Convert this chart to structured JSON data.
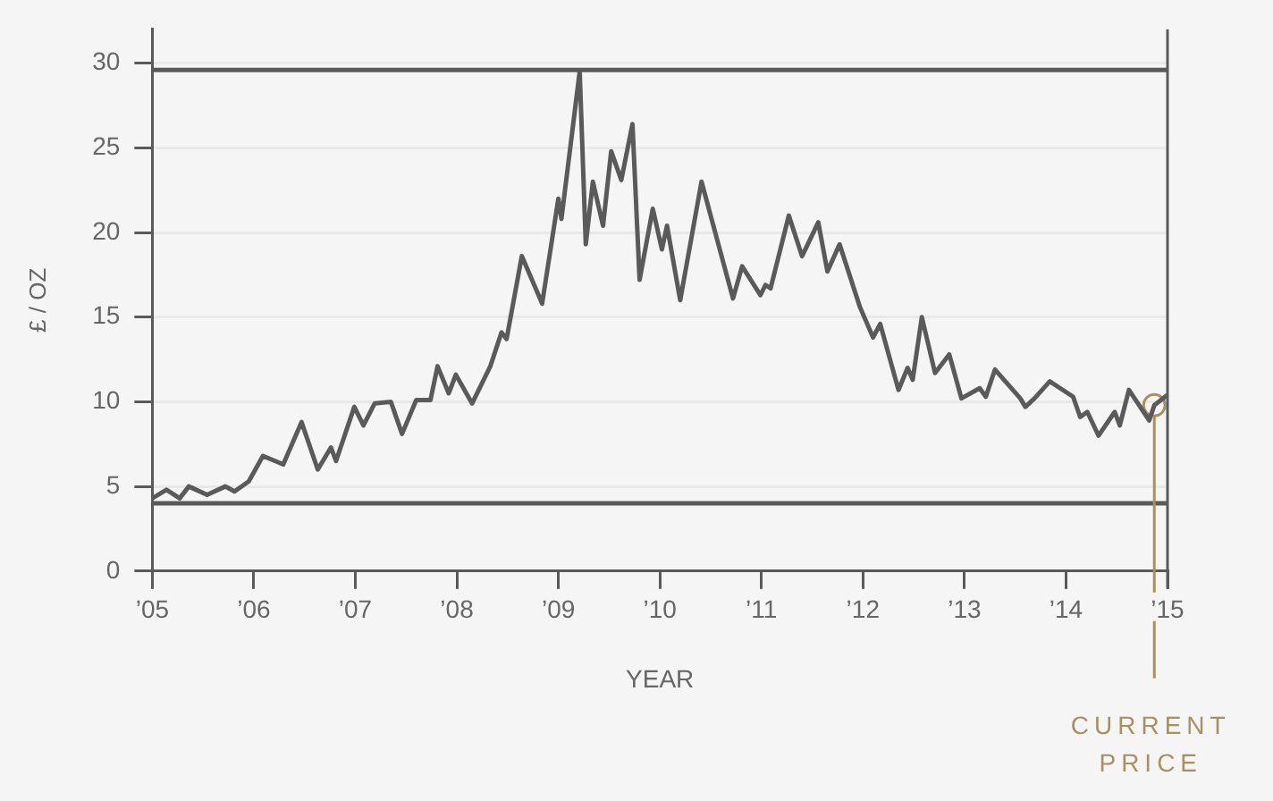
{
  "chart_data": {
    "type": "line",
    "xlabel": "YEAR",
    "ylabel": "£ / OZ",
    "x": [
      2005.0,
      2005.14,
      2005.27,
      2005.36,
      2005.54,
      2005.72,
      2005.81,
      2005.95,
      2006.09,
      2006.29,
      2006.47,
      2006.63,
      2006.76,
      2006.81,
      2006.99,
      2007.08,
      2007.19,
      2007.35,
      2007.46,
      2007.6,
      2007.74,
      2007.81,
      2007.92,
      2007.99,
      2008.15,
      2008.33,
      2008.44,
      2008.49,
      2008.64,
      2008.84,
      2009.0,
      2009.03,
      2009.21,
      2009.27,
      2009.34,
      2009.44,
      2009.52,
      2009.62,
      2009.73,
      2009.8,
      2009.93,
      2010.02,
      2010.07,
      2010.2,
      2010.41,
      2010.72,
      2010.81,
      2010.99,
      2011.04,
      2011.09,
      2011.27,
      2011.4,
      2011.56,
      2011.65,
      2011.77,
      2011.97,
      2012.1,
      2012.17,
      2012.35,
      2012.44,
      2012.49,
      2012.58,
      2012.71,
      2012.85,
      2012.97,
      2013.15,
      2013.21,
      2013.3,
      2013.55,
      2013.6,
      2013.69,
      2013.84,
      2014.07,
      2014.14,
      2014.21,
      2014.32,
      2014.48,
      2014.53,
      2014.62,
      2014.82,
      2014.87,
      2015.0
    ],
    "series": [
      {
        "color": "#5a5a5a",
        "marker": "none",
        "values": [
          4.3,
          4.8,
          4.3,
          5.0,
          4.5,
          5.0,
          4.7,
          5.3,
          6.8,
          6.3,
          8.8,
          6.0,
          7.3,
          6.5,
          9.7,
          8.6,
          9.9,
          10.0,
          8.1,
          10.1,
          10.1,
          12.1,
          10.5,
          11.6,
          9.9,
          12.1,
          14.1,
          13.7,
          18.6,
          15.8,
          22.0,
          20.8,
          29.5,
          19.3,
          23.0,
          20.4,
          24.8,
          23.1,
          26.4,
          17.2,
          21.4,
          19.0,
          20.4,
          16.0,
          23.0,
          16.1,
          18.0,
          16.3,
          16.9,
          16.7,
          21.0,
          18.6,
          20.6,
          17.7,
          19.3,
          15.6,
          13.8,
          14.6,
          10.7,
          12.0,
          11.3,
          15.0,
          11.7,
          12.8,
          10.2,
          10.8,
          10.3,
          11.9,
          10.2,
          9.7,
          10.2,
          11.2,
          10.3,
          9.1,
          9.4,
          8.0,
          9.4,
          8.6,
          10.7,
          8.9,
          9.8,
          10.4
        ]
      },
      {
        "type": "scatter",
        "color": "#a89060",
        "marker": "circle",
        "x": [
          2014.87
        ],
        "values": [
          9.8
        ]
      }
    ],
    "xlim": [
      2005,
      2015
    ],
    "ylim": [
      0,
      32
    ],
    "xticks": [
      {
        "value": 2005,
        "label": "’05"
      },
      {
        "value": 2006,
        "label": "’06"
      },
      {
        "value": 2007,
        "label": "’07"
      },
      {
        "value": 2008,
        "label": "’08"
      },
      {
        "value": 2009,
        "label": "’09"
      },
      {
        "value": 2010,
        "label": "’10"
      },
      {
        "value": 2011,
        "label": "’11"
      },
      {
        "value": 2012,
        "label": "’12"
      },
      {
        "value": 2013,
        "label": "’13"
      },
      {
        "value": 2014,
        "label": "’14"
      },
      {
        "value": 2015,
        "label": "’15"
      }
    ],
    "yticks": [
      0,
      5,
      10,
      15,
      20,
      25,
      30
    ],
    "ref_lines": [
      {
        "axis": "y",
        "value": 29.6,
        "color": "#5a5a5a"
      },
      {
        "axis": "y",
        "value": 4,
        "color": "#5a5a5a"
      },
      {
        "axis": "x",
        "value": 2014.87,
        "label": "CURRENT PRICE",
        "color": "#a89060"
      }
    ],
    "grid": "y",
    "legend": false,
    "line_style": "solid"
  }
}
